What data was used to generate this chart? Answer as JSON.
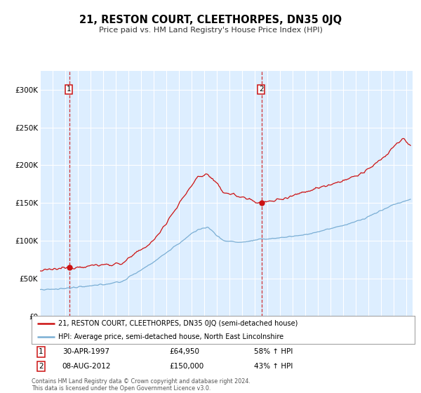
{
  "title": "21, RESTON COURT, CLEETHORPES, DN35 0JQ",
  "subtitle": "Price paid vs. HM Land Registry's House Price Index (HPI)",
  "legend_line1": "21, RESTON COURT, CLEETHORPES, DN35 0JQ (semi-detached house)",
  "legend_line2": "HPI: Average price, semi-detached house, North East Lincolnshire",
  "sale1_date": "30-APR-1997",
  "sale1_price": 64950,
  "sale1_hpi": "58% ↑ HPI",
  "sale2_date": "08-AUG-2012",
  "sale2_price": 150000,
  "sale2_hpi": "43% ↑ HPI",
  "footnote": "Contains HM Land Registry data © Crown copyright and database right 2024.\nThis data is licensed under the Open Government Licence v3.0.",
  "hpi_color": "#7aaed4",
  "price_color": "#cc1111",
  "bg_color": "#ddeeff",
  "sale1_x": 1997.33,
  "sale2_x": 2012.58,
  "ylim_max": 325000,
  "xlim_min": 1995.0,
  "xlim_max": 2024.5
}
